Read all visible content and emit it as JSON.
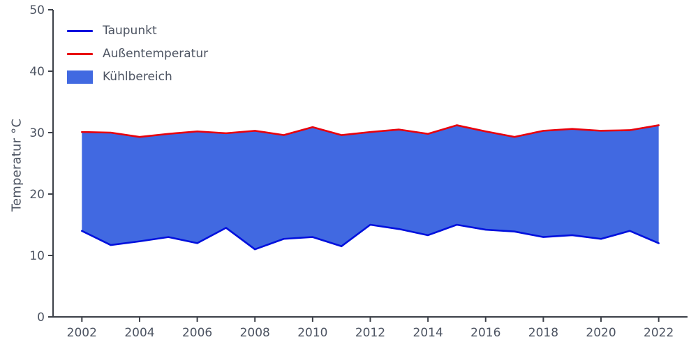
{
  "chart_data": {
    "type": "area",
    "title": "",
    "xlabel": "",
    "ylabel": "Temperatur °C",
    "x": [
      2002,
      2003,
      2004,
      2005,
      2006,
      2007,
      2008,
      2009,
      2010,
      2011,
      2012,
      2013,
      2014,
      2015,
      2016,
      2017,
      2018,
      2019,
      2020,
      2021,
      2022
    ],
    "series": [
      {
        "name": "Taupunkt",
        "color": "#0010dd",
        "values": [
          14.0,
          11.7,
          12.3,
          13.0,
          12.0,
          14.5,
          11.0,
          12.7,
          13.0,
          11.5,
          15.0,
          14.3,
          13.3,
          15.0,
          14.2,
          13.9,
          13.0,
          13.3,
          12.7,
          14.0,
          12.0
        ]
      },
      {
        "name": "Außentemperatur",
        "color": "#e8000b",
        "values": [
          30.1,
          30.0,
          29.3,
          29.8,
          30.2,
          29.9,
          30.3,
          29.6,
          30.9,
          29.6,
          30.1,
          30.5,
          29.8,
          31.2,
          30.2,
          29.3,
          30.3,
          30.6,
          30.3,
          30.4,
          31.2
        ]
      }
    ],
    "fill": {
      "name": "Kühlbereich",
      "color": "#4169e1",
      "between": [
        "Taupunkt",
        "Außentemperatur"
      ]
    },
    "xlim": [
      2001,
      2023
    ],
    "ylim": [
      0,
      50
    ],
    "xticks": [
      2002,
      2004,
      2006,
      2008,
      2010,
      2012,
      2014,
      2016,
      2018,
      2020,
      2022
    ],
    "yticks": [
      0,
      10,
      20,
      30,
      40,
      50
    ],
    "grid": false,
    "legend_position": "upper left"
  },
  "legend": {
    "items": [
      {
        "label": "Taupunkt",
        "type": "line",
        "color": "#0010dd"
      },
      {
        "label": "Außentemperatur",
        "type": "line",
        "color": "#e8000b"
      },
      {
        "label": "Kühlbereich",
        "type": "area",
        "color": "#4169e1"
      }
    ]
  },
  "styles": {
    "text_color": "#4d5462",
    "spine_color": "#3c4048",
    "tick_font_size": 17
  }
}
